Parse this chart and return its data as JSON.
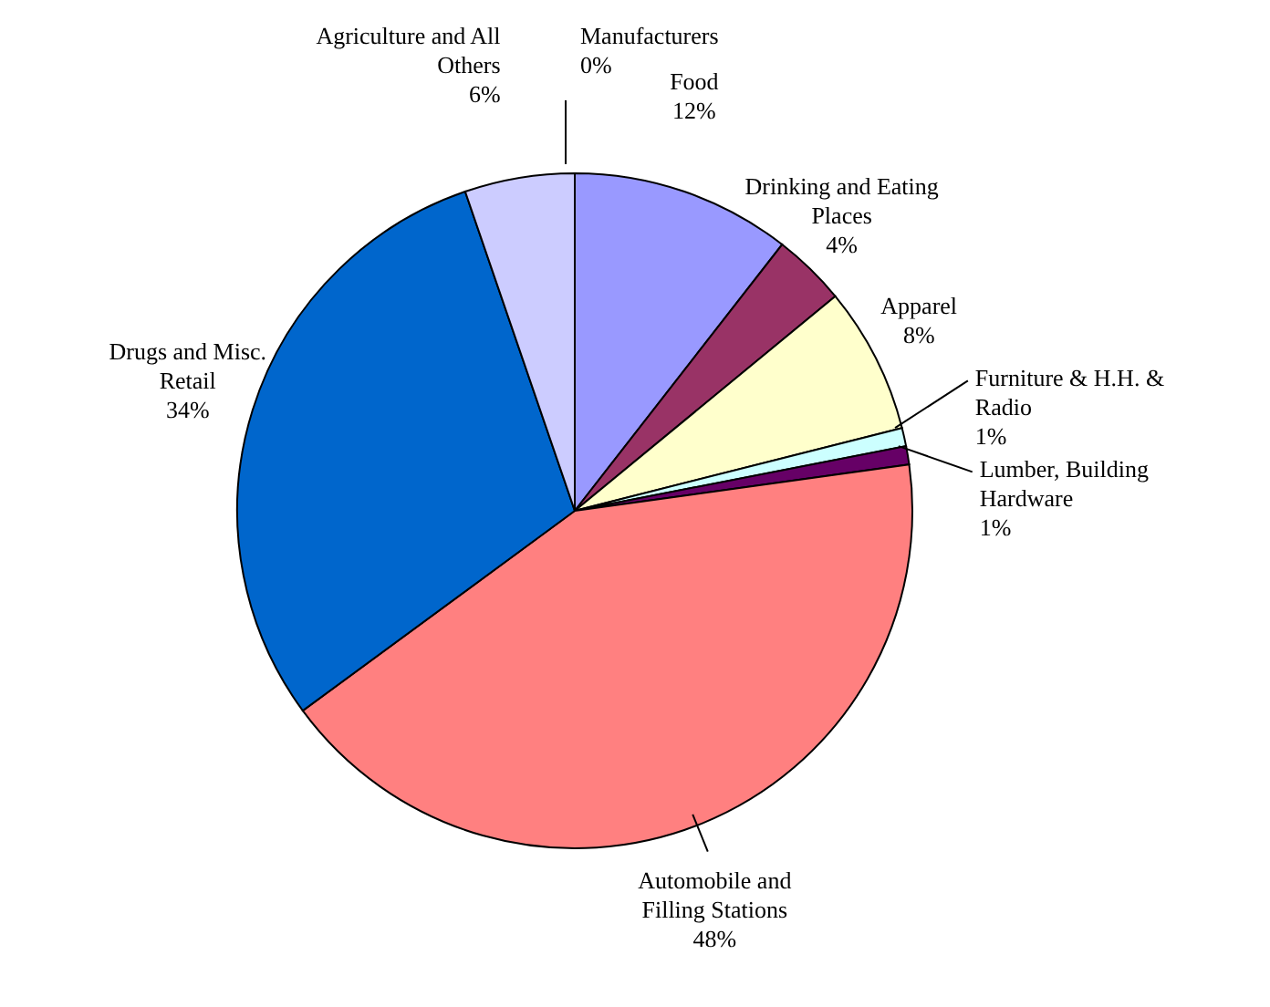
{
  "chart_data": {
    "type": "pie",
    "categories": [
      "Manufacturers",
      "Food",
      "Drinking and Eating Places",
      "Apparel",
      "Furniture & H.H. & Radio",
      "Lumber, Building Hardware",
      "Automobile and Filling Stations",
      "Drugs and Misc. Retail",
      "Agriculture and All Others"
    ],
    "values": [
      0,
      12,
      4,
      8,
      1,
      1,
      48,
      34,
      6
    ],
    "value_labels": [
      "0%",
      "12%",
      "4%",
      "8%",
      "1%",
      "1%",
      "48%",
      "34%",
      "6%"
    ],
    "colors": [
      "#9999ff",
      "#9999ff",
      "#993366",
      "#ffffcc",
      "#ccffff",
      "#660066",
      "#ff8080",
      "#0066cc",
      "#ccccff"
    ],
    "legend": false
  }
}
